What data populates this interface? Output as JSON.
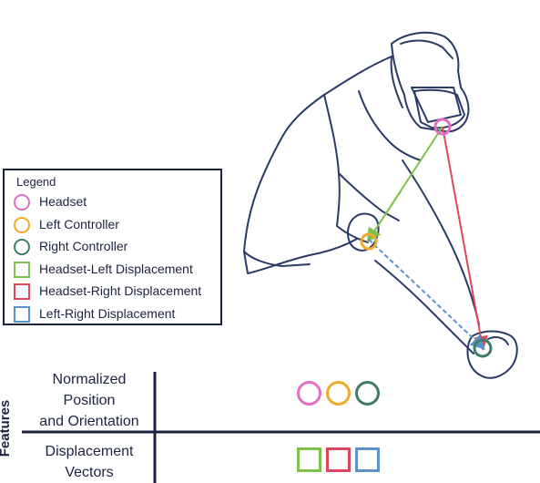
{
  "colors": {
    "headset": "#e26fc4",
    "left_controller": "#f0a92a",
    "right_controller": "#3f7a6a",
    "headset_left_displacement": "#7cc24c",
    "headset_right_displacement": "#d9485f",
    "left_right_displacement": "#5b93c9",
    "ink": "#1c2340"
  },
  "legend": {
    "title": "Legend",
    "items": [
      {
        "label": "Headset",
        "shape": "circle",
        "color_key": "headset"
      },
      {
        "label": "Left Controller",
        "shape": "circle",
        "color_key": "left_controller"
      },
      {
        "label": "Right Controller",
        "shape": "circle",
        "color_key": "right_controller"
      },
      {
        "label": "Headset-Left Displacement",
        "shape": "square",
        "color_key": "headset_left_displacement"
      },
      {
        "label": "Headset-Right Displacement",
        "shape": "square",
        "color_key": "headset_right_displacement"
      },
      {
        "label": "Left-Right Displacement",
        "shape": "square",
        "color_key": "left_right_displacement"
      }
    ]
  },
  "features": {
    "axis_label": "Features",
    "rows": [
      {
        "label_lines": [
          "Normalized",
          "Position",
          "and Orientation"
        ],
        "symbols": [
          "headset",
          "left_controller",
          "right_controller"
        ],
        "shape": "circle"
      },
      {
        "label_lines": [
          "Displacement",
          "Vectors"
        ],
        "symbols": [
          "headset_left_displacement",
          "headset_right_displacement",
          "left_right_displacement"
        ],
        "shape": "square"
      }
    ]
  },
  "illustration": {
    "subject": "person-wearing-headset-reaching-forward-icon"
  }
}
